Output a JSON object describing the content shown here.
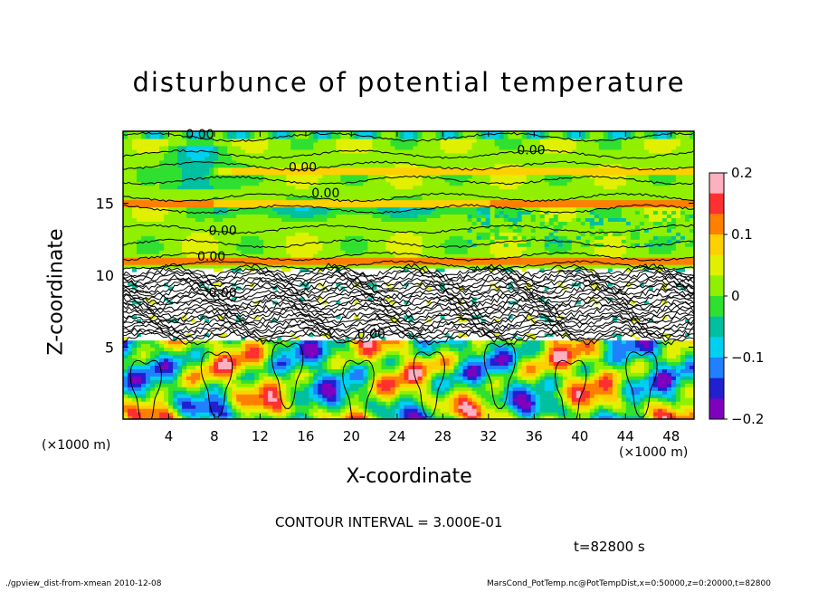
{
  "chart_data": {
    "type": "heatmap",
    "title": "disturbunce of potential temperature",
    "xlabel": "X-coordinate",
    "ylabel": "Z-coordinate",
    "x_unit": "(×1000 m)",
    "z_unit": "(×1000 m)",
    "xlim": [
      0,
      50
    ],
    "ylim": [
      0,
      20
    ],
    "x_ticks": [
      4,
      8,
      12,
      16,
      20,
      24,
      28,
      32,
      36,
      40,
      44,
      48
    ],
    "y_ticks": [
      5,
      10,
      15
    ],
    "colorbar": {
      "ticks": [
        0.2,
        0.1,
        0,
        -0.1,
        -0.2
      ],
      "tick_labels": [
        "0.2",
        "0.1",
        "0",
        "−0.1",
        "−0.2"
      ],
      "range": [
        -0.2,
        0.2
      ],
      "colors": [
        "#ffb0c0",
        "#ff3030",
        "#ff8000",
        "#ffd000",
        "#e0f000",
        "#90f000",
        "#30e030",
        "#00c0a0",
        "#00d0f0",
        "#2080ff",
        "#2020d0",
        "#8000c0"
      ]
    },
    "contour_labels": [
      "0.00",
      "0.00",
      "0.00",
      "0.00",
      "0.00",
      "0.00",
      "0.00",
      "0.00"
    ],
    "contour_interval_text": "CONTOUR INTERVAL = 3.000E-01",
    "time_text": "t=82800 s"
  },
  "footer": {
    "left": "./gpview_dist-from-xmean  2010-12-08",
    "right": "MarsCond_PotTemp.nc@PotTempDist,x=0:50000,z=0:20000,t=82800"
  }
}
